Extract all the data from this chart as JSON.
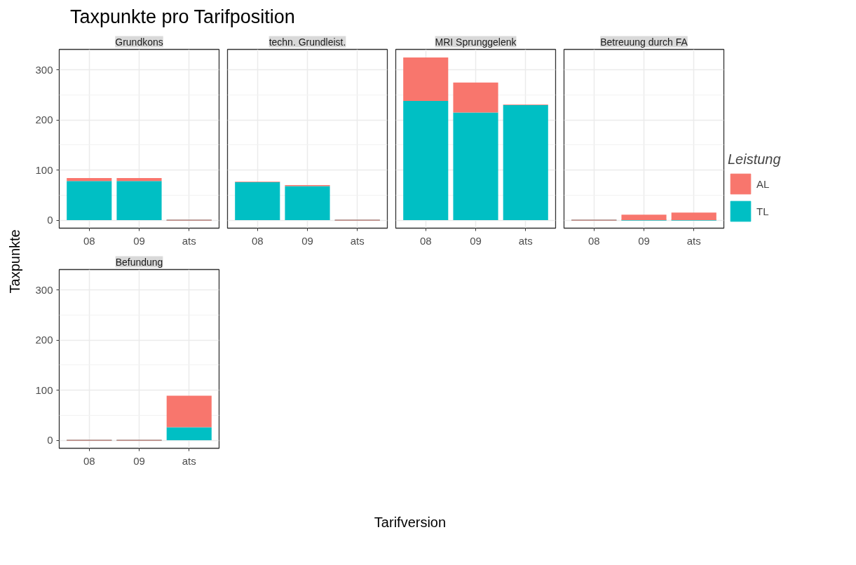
{
  "chart_data": [
    {
      "type": "other",
      "title": "Taxpunkte pro Tarifposition",
      "xlabel": "Tarifversion",
      "ylabel": "Taxpunkte"
    },
    {
      "type": "bar",
      "title": "Grundkons",
      "categories": [
        "08",
        "09",
        "ats"
      ],
      "stacked": true,
      "ylim": [
        -16,
        341
      ],
      "yticks": [
        0,
        100,
        200,
        300
      ],
      "grid": true,
      "legend": false,
      "series": [
        {
          "color": "#00bfc4",
          "values": [
            78,
            78,
            0
          ]
        },
        {
          "color": "#f8766d",
          "values": [
            6,
            6,
            0
          ]
        }
      ]
    },
    {
      "type": "bar",
      "title": "techn. Grundleist.",
      "categories": [
        "08",
        "09",
        "ats"
      ],
      "stacked": true,
      "ylim": [
        -16,
        341
      ],
      "yticks": [
        0,
        100,
        200,
        300
      ],
      "grid": true,
      "legend": false,
      "tick_labels": "x",
      "series": [
        {
          "color": "#00bfc4",
          "values": [
            76,
            68,
            0
          ]
        },
        {
          "color": "#f8766d",
          "values": [
            1,
            2,
            0
          ]
        }
      ]
    },
    {
      "type": "bar",
      "title": "MRI Sprunggelenk",
      "categories": [
        "08",
        "09",
        "ats"
      ],
      "stacked": true,
      "ylim": [
        -16,
        341
      ],
      "yticks": [
        0,
        100,
        200,
        300
      ],
      "grid": true,
      "legend": false,
      "tick_labels": "x",
      "series": [
        {
          "color": "#00bfc4",
          "values": [
            238,
            215,
            230
          ]
        },
        {
          "color": "#f8766d",
          "values": [
            87,
            60,
            1
          ]
        }
      ]
    },
    {
      "type": "bar",
      "title": "Betreuung durch FA",
      "categories": [
        "08",
        "09",
        "ats"
      ],
      "stacked": true,
      "ylim": [
        -16,
        341
      ],
      "yticks": [
        0,
        100,
        200,
        300
      ],
      "grid": true,
      "legend": "right",
      "legend_title": "Leistung",
      "tick_labels": "x",
      "series": [
        {
          "name": "TL",
          "color": "#00bfc4",
          "values": [
            0,
            0,
            0
          ]
        },
        {
          "name": "AL",
          "color": "#f8766d",
          "values": [
            0,
            11,
            15
          ]
        }
      ]
    },
    {
      "type": "bar",
      "title": "Befundung",
      "categories": [
        "08",
        "09",
        "ats"
      ],
      "stacked": true,
      "ylim": [
        -16,
        341
      ],
      "yticks": [
        0,
        100,
        200,
        300
      ],
      "grid": true,
      "legend": false,
      "series": [
        {
          "color": "#00bfc4",
          "values": [
            0,
            0,
            26
          ]
        },
        {
          "color": "#f8766d",
          "values": [
            0,
            0,
            63
          ]
        }
      ]
    }
  ]
}
